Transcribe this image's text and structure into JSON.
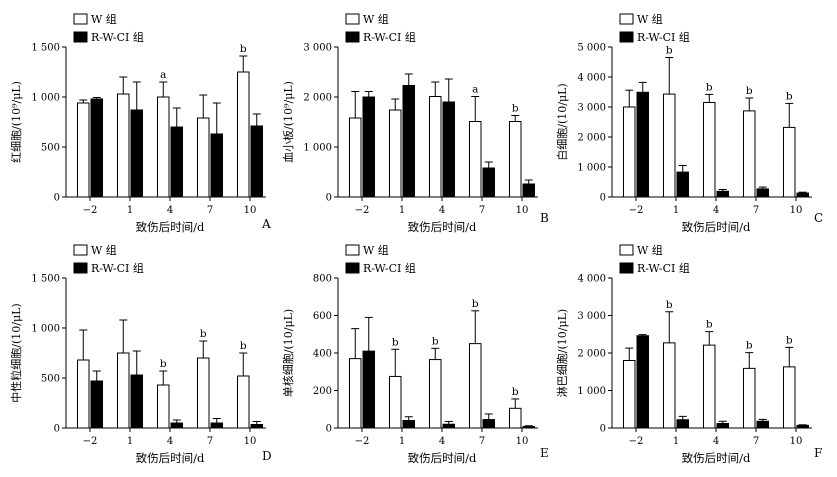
{
  "figure": {
    "legend_open": "W 组",
    "legend_filled": "R-W-CI 组",
    "x_label": "致伤后时间/d",
    "series_colors": {
      "W 组": "#ffffff",
      "R-W-CI 组": "#000000"
    }
  },
  "chart_data": [
    {
      "type": "bar",
      "panel_label": "A",
      "ylabel": "红细胞/(10⁹/μL)",
      "xlabel": "致伤后时间/d",
      "categories": [
        "−2",
        "1",
        "4",
        "7",
        "10"
      ],
      "ylim": [
        0,
        1500
      ],
      "yticks": [
        0,
        500,
        1000,
        1500
      ],
      "ytick_labels": [
        "0",
        "500",
        "1 000",
        "1 500"
      ],
      "series": [
        {
          "name": "W 组",
          "values": [
            940,
            1030,
            1000,
            790,
            1250
          ],
          "errors": [
            30,
            170,
            150,
            230,
            160
          ]
        },
        {
          "name": "R-W-CI 组",
          "values": [
            980,
            870,
            700,
            630,
            710
          ],
          "errors": [
            15,
            280,
            190,
            310,
            120
          ]
        }
      ],
      "significance": [
        {
          "category": "4",
          "series": "W 组",
          "label": "a"
        },
        {
          "category": "10",
          "series": "W 组",
          "label": "b"
        }
      ]
    },
    {
      "type": "bar",
      "panel_label": "B",
      "ylabel": "血小板/(10⁹/μL)",
      "xlabel": "致伤后时间/d",
      "categories": [
        "−2",
        "1",
        "4",
        "7",
        "10"
      ],
      "ylim": [
        0,
        3000
      ],
      "yticks": [
        0,
        1000,
        2000,
        3000
      ],
      "ytick_labels": [
        "0",
        "1 000",
        "2 000",
        "3 000"
      ],
      "series": [
        {
          "name": "W 组",
          "values": [
            1580,
            1740,
            2010,
            1510,
            1510
          ],
          "errors": [
            530,
            220,
            290,
            500,
            120
          ]
        },
        {
          "name": "R-W-CI 组",
          "values": [
            2000,
            2230,
            1900,
            580,
            260
          ],
          "errors": [
            110,
            230,
            460,
            120,
            80
          ]
        }
      ],
      "significance": [
        {
          "category": "7",
          "series": "W 组",
          "label": "a"
        },
        {
          "category": "10",
          "series": "W 组",
          "label": "b"
        }
      ]
    },
    {
      "type": "bar",
      "panel_label": "C",
      "ylabel": "白细胞/(10/μL)",
      "xlabel": "致伤后时间/d",
      "categories": [
        "−2",
        "1",
        "4",
        "7",
        "10"
      ],
      "ylim": [
        0,
        5000
      ],
      "yticks": [
        0,
        1000,
        2000,
        3000,
        4000,
        5000
      ],
      "ytick_labels": [
        "0",
        "1 000",
        "2 000",
        "3 000",
        "4 000",
        "5 000"
      ],
      "series": [
        {
          "name": "W 组",
          "values": [
            3000,
            3430,
            3150,
            2870,
            2320
          ],
          "errors": [
            560,
            1220,
            270,
            430,
            800
          ]
        },
        {
          "name": "R-W-CI 组",
          "values": [
            3490,
            830,
            190,
            270,
            130
          ],
          "errors": [
            330,
            220,
            60,
            60,
            30
          ]
        }
      ],
      "significance": [
        {
          "category": "1",
          "series": "W 组",
          "label": "b"
        },
        {
          "category": "4",
          "series": "W 组",
          "label": "b"
        },
        {
          "category": "7",
          "series": "W 组",
          "label": "b"
        },
        {
          "category": "10",
          "series": "W 组",
          "label": "b"
        }
      ]
    },
    {
      "type": "bar",
      "panel_label": "D",
      "ylabel": "中性粒细胞/(10/μL)",
      "xlabel": "致伤后时间/d",
      "categories": [
        "−2",
        "1",
        "4",
        "7",
        "10"
      ],
      "ylim": [
        0,
        1500
      ],
      "yticks": [
        0,
        500,
        1000,
        1500
      ],
      "ytick_labels": [
        "0",
        "500",
        "1 000",
        "1 500"
      ],
      "series": [
        {
          "name": "W 组",
          "values": [
            680,
            750,
            430,
            700,
            520
          ],
          "errors": [
            300,
            330,
            140,
            170,
            230
          ]
        },
        {
          "name": "R-W-CI 组",
          "values": [
            470,
            530,
            50,
            50,
            35
          ],
          "errors": [
            100,
            240,
            30,
            45,
            30
          ]
        }
      ],
      "significance": [
        {
          "category": "4",
          "series": "W 组",
          "label": "b"
        },
        {
          "category": "7",
          "series": "W 组",
          "label": "b"
        },
        {
          "category": "10",
          "series": "W 组",
          "label": "b"
        }
      ]
    },
    {
      "type": "bar",
      "panel_label": "E",
      "ylabel": "单核细胞/(10/μL)",
      "xlabel": "致伤后时间/d",
      "categories": [
        "−2",
        "1",
        "4",
        "7",
        "10"
      ],
      "ylim": [
        0,
        800
      ],
      "yticks": [
        0,
        200,
        400,
        600,
        800
      ],
      "ytick_labels": [
        "0",
        "200",
        "400",
        "600",
        "800"
      ],
      "series": [
        {
          "name": "W 组",
          "values": [
            370,
            275,
            365,
            450,
            105
          ],
          "errors": [
            160,
            145,
            60,
            175,
            50
          ]
        },
        {
          "name": "R-W-CI 组",
          "values": [
            410,
            40,
            20,
            45,
            8
          ],
          "errors": [
            180,
            20,
            15,
            30,
            4
          ]
        }
      ],
      "significance": [
        {
          "category": "1",
          "series": "W 组",
          "label": "b"
        },
        {
          "category": "4",
          "series": "W 组",
          "label": "b"
        },
        {
          "category": "7",
          "series": "W 组",
          "label": "b"
        },
        {
          "category": "10",
          "series": "W 组",
          "label": "b"
        }
      ]
    },
    {
      "type": "bar",
      "panel_label": "F",
      "ylabel": "淋巴细胞/(10/μL)",
      "xlabel": "致伤后时间/d",
      "categories": [
        "−2",
        "1",
        "4",
        "7",
        "10"
      ],
      "ylim": [
        0,
        4000
      ],
      "yticks": [
        0,
        1000,
        2000,
        3000,
        4000
      ],
      "ytick_labels": [
        "0",
        "1 000",
        "2 000",
        "3 000",
        "4 000"
      ],
      "series": [
        {
          "name": "W 组",
          "values": [
            1800,
            2270,
            2210,
            1590,
            1630
          ],
          "errors": [
            330,
            830,
            360,
            420,
            520
          ]
        },
        {
          "name": "R-W-CI 组",
          "values": [
            2460,
            220,
            120,
            180,
            70
          ],
          "errors": [
            30,
            90,
            60,
            50,
            15
          ]
        }
      ],
      "significance": [
        {
          "category": "1",
          "series": "W 组",
          "label": "b"
        },
        {
          "category": "4",
          "series": "W 组",
          "label": "b"
        },
        {
          "category": "7",
          "series": "W 组",
          "label": "b"
        },
        {
          "category": "10",
          "series": "W 组",
          "label": "b"
        }
      ]
    }
  ]
}
